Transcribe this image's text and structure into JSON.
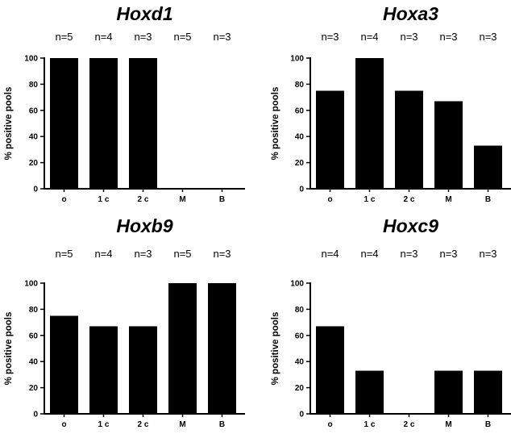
{
  "chart_data": [
    {
      "type": "bar",
      "title": "Hoxd1",
      "ylabel": "% positive pools",
      "categories": [
        "o",
        "1 c",
        "2 c",
        "M",
        "B"
      ],
      "n_labels": [
        "n=5",
        "n=4",
        "n=3",
        "n=5",
        "n=3"
      ],
      "values": [
        100,
        100,
        100,
        0,
        0
      ],
      "ylim": [
        0,
        100
      ],
      "yticks": [
        0,
        20,
        40,
        60,
        80,
        100
      ],
      "bar_color": "#000000"
    },
    {
      "type": "bar",
      "title": "Hoxa3",
      "ylabel": "% positive pools",
      "categories": [
        "o",
        "1 c",
        "2 c",
        "M",
        "B"
      ],
      "n_labels": [
        "n=3",
        "n=4",
        "n=3",
        "n=3",
        "n=3"
      ],
      "values": [
        75,
        100,
        75,
        67,
        33
      ],
      "ylim": [
        0,
        100
      ],
      "yticks": [
        0,
        20,
        40,
        60,
        80,
        100
      ],
      "bar_color": "#000000"
    },
    {
      "type": "bar",
      "title": "Hoxb9",
      "ylabel": "% positive pools",
      "categories": [
        "o",
        "1 c",
        "2 c",
        "M",
        "B"
      ],
      "n_labels": [
        "n=5",
        "n=4",
        "n=3",
        "n=5",
        "n=3"
      ],
      "values": [
        75,
        67,
        67,
        100,
        100
      ],
      "ylim": [
        0,
        100
      ],
      "yticks": [
        0,
        20,
        40,
        60,
        80,
        100
      ],
      "bar_color": "#000000"
    },
    {
      "type": "bar",
      "title": "Hoxc9",
      "ylabel": "% positive pools",
      "categories": [
        "o",
        "1 c",
        "2 c",
        "M",
        "B"
      ],
      "n_labels": [
        "n=4",
        "n=4",
        "n=3",
        "n=3",
        "n=3"
      ],
      "values": [
        67,
        33,
        0,
        33,
        33
      ],
      "ylim": [
        0,
        100
      ],
      "yticks": [
        0,
        20,
        40,
        60,
        80,
        100
      ],
      "bar_color": "#000000"
    }
  ]
}
